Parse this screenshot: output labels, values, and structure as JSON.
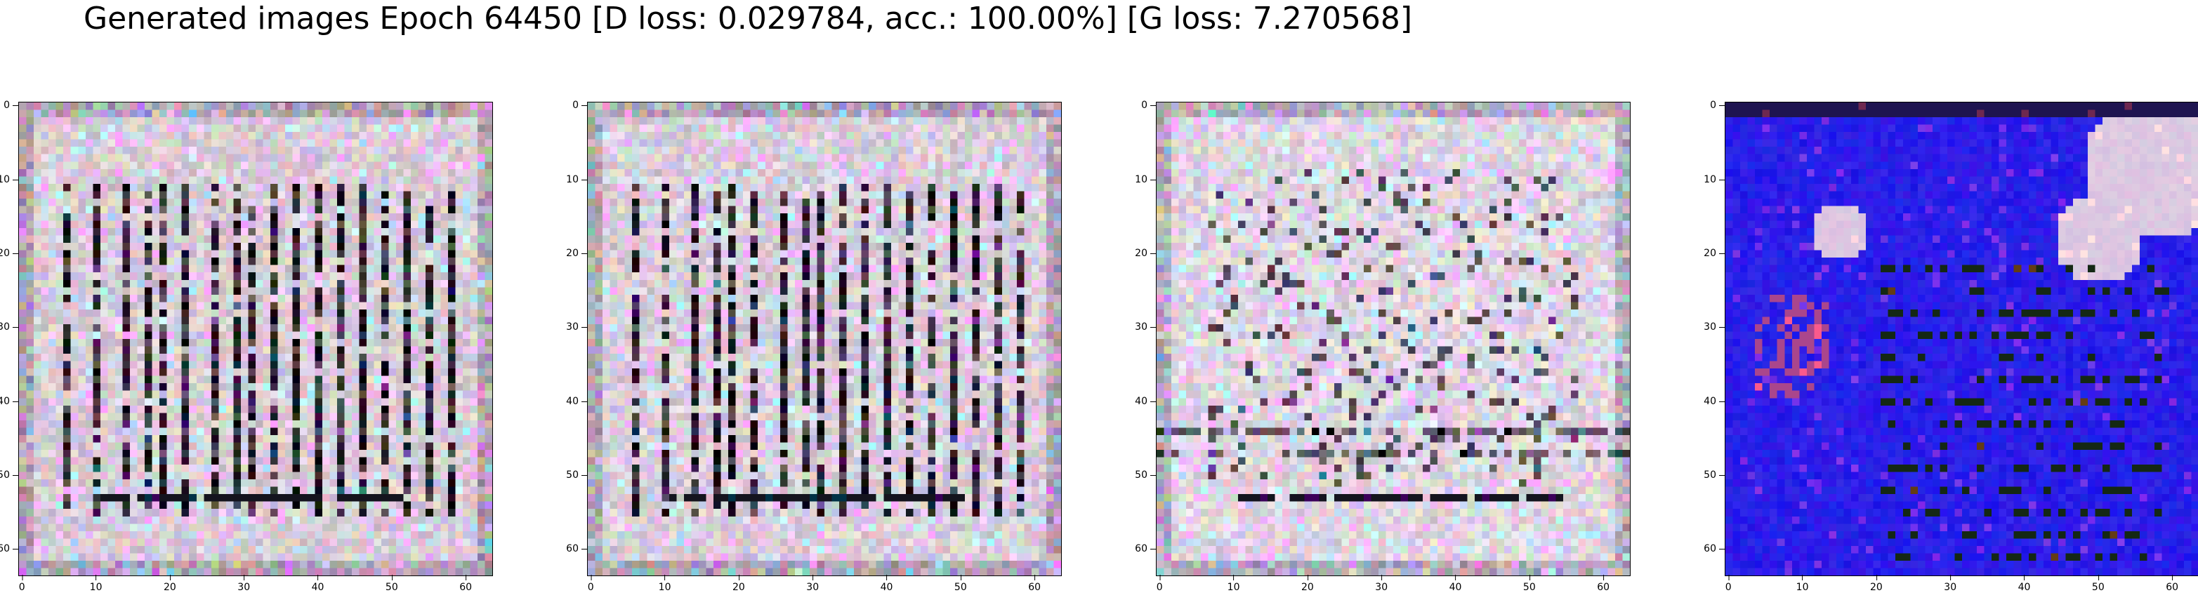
{
  "title": "Generated images Epoch 64450 [D loss: 0.029784, acc.: 100.00%] [G loss: 7.270568]",
  "axis_ticks": {
    "x": [
      "0",
      "10",
      "20",
      "30",
      "40",
      "50",
      "60"
    ],
    "y": [
      "0",
      "10",
      "20",
      "30",
      "40",
      "50",
      "60"
    ]
  },
  "image_size": 64,
  "panels": [
    {
      "id": "generated-image-1",
      "style": "gate",
      "base_color": "#d7ccd6"
    },
    {
      "id": "generated-image-2",
      "style": "gate",
      "base_color": "#d8cdd8"
    },
    {
      "id": "generated-image-3",
      "style": "grid",
      "base_color": "#ddd4df"
    },
    {
      "id": "generated-image-4",
      "style": "blue",
      "base_color": "#2a1ee8"
    }
  ]
}
